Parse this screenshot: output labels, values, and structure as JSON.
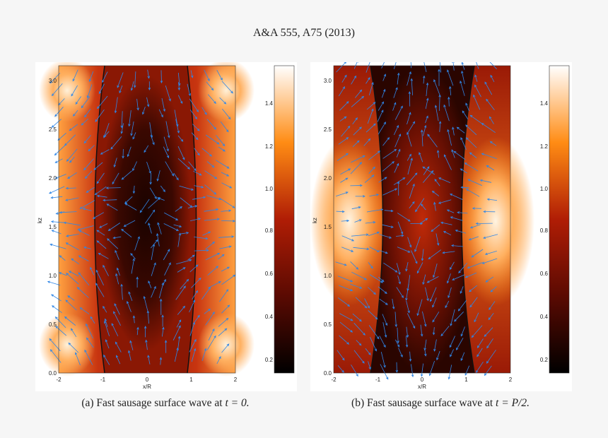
{
  "header": {
    "journal_ref": "A&A 555, A75 (2013)"
  },
  "figure": {
    "panels": [
      {
        "id": "a",
        "caption_label": "(a)",
        "caption_text": "Fast sausage surface wave at",
        "caption_math": "t = 0.",
        "xlabel": "x/R",
        "ylabel": "kz",
        "x_ticks": [
          "-2",
          "-1",
          "0",
          "1",
          "2"
        ],
        "y_ticks": [
          "0.0",
          "0.5",
          "1.0",
          "1.5",
          "2.0",
          "2.5",
          "3.0"
        ],
        "colorbar_ticks": [
          "0.2",
          "0.4",
          "0.6",
          "0.8",
          "1.0",
          "1.2",
          "1.4"
        ]
      },
      {
        "id": "b",
        "caption_label": "(b)",
        "caption_text": "Fast sausage surface wave at",
        "caption_math": "t = P/2.",
        "xlabel": "x/R",
        "ylabel": "kz",
        "x_ticks": [
          "-2",
          "-1",
          "0",
          "1",
          "2"
        ],
        "y_ticks": [
          "0.0",
          "0.5",
          "1.0",
          "1.5",
          "2.0",
          "2.5",
          "3.0"
        ],
        "colorbar_ticks": [
          "0.2",
          "0.4",
          "0.6",
          "0.8",
          "1.0",
          "1.2",
          "1.4"
        ]
      }
    ],
    "colors": {
      "arrow": "#2f86e6",
      "boundary": "#111111",
      "map_low": "#000000",
      "map_mid": "#b01d05",
      "map_high": "#ff8c14",
      "map_top": "#ffffff"
    }
  }
}
